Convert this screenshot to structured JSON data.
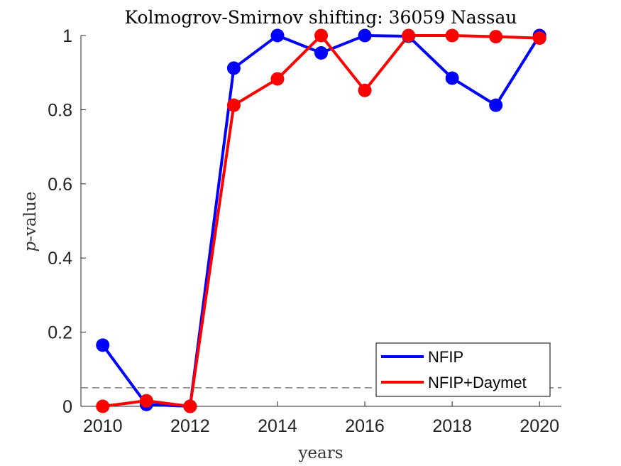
{
  "chart_data": {
    "type": "line",
    "title": "Kolmogrov-Smirnov shifting: 36059 Nassau",
    "xlabel": "years",
    "ylabel_italic": "p",
    "ylabel_rest": "-value",
    "xlim": [
      2009.5,
      2020.5
    ],
    "ylim": [
      0,
      1
    ],
    "xticks": [
      2010,
      2012,
      2014,
      2016,
      2018,
      2020
    ],
    "yticks": [
      0,
      0.2,
      0.4,
      0.6,
      0.8,
      1
    ],
    "ytick_labels": [
      "0",
      "0.2",
      "0.4",
      "0.6",
      "0.8",
      "1"
    ],
    "xtick_labels": [
      "2010",
      "2012",
      "2014",
      "2016",
      "2018",
      "2020"
    ],
    "x": [
      2010,
      2011,
      2012,
      2013,
      2014,
      2015,
      2016,
      2017,
      2018,
      2019,
      2020
    ],
    "series": [
      {
        "name": "NFIP",
        "color": "#0000ff",
        "values": [
          0.165,
          0.005,
          0.0,
          0.912,
          1.0,
          0.953,
          1.0,
          0.998,
          0.885,
          0.812,
          1.0
        ]
      },
      {
        "name": "NFIP+Daymet",
        "color": "#ff0000",
        "values": [
          0.0,
          0.015,
          0.0,
          0.812,
          0.883,
          1.0,
          0.852,
          1.0,
          1.0,
          0.997,
          0.993
        ]
      }
    ],
    "reference_line": {
      "y": 0.05,
      "style": "dashed",
      "color": "#808080"
    },
    "legend_position": "bottom-right",
    "grid": false
  }
}
